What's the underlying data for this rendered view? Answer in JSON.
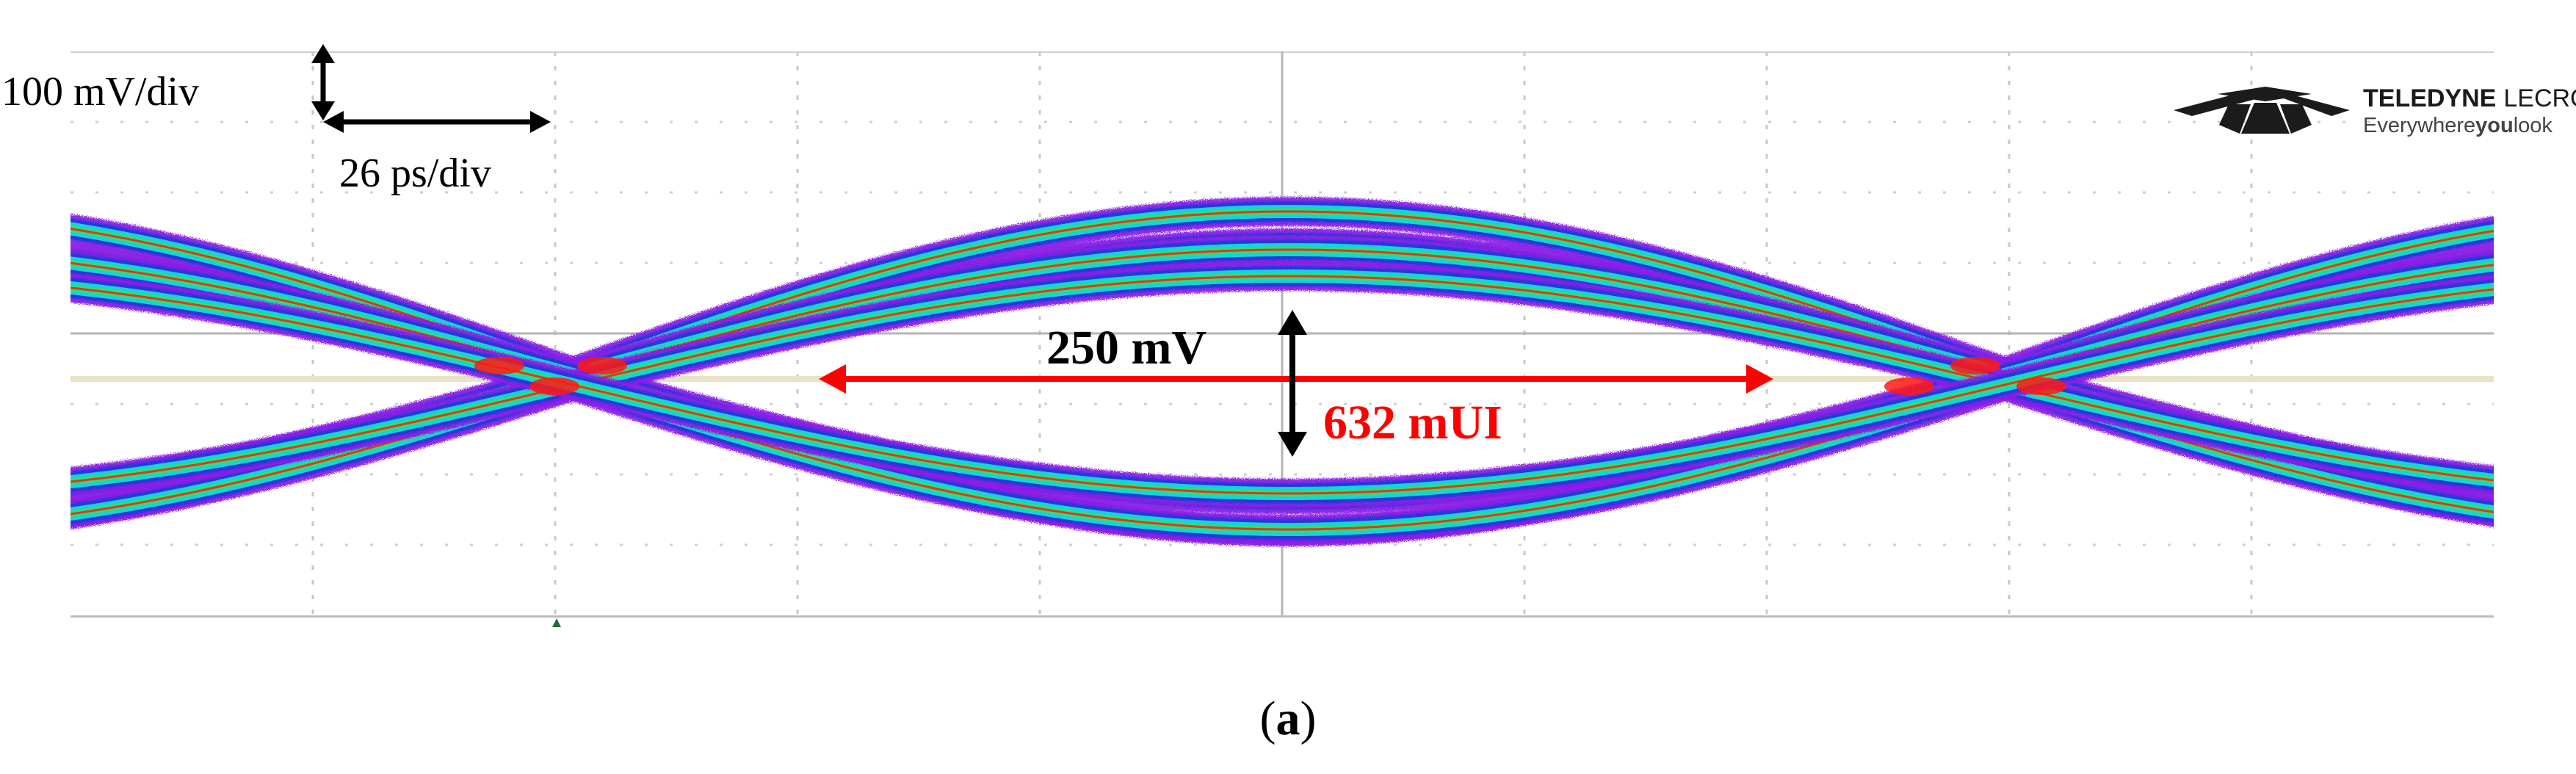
{
  "chart_data": {
    "type": "eye-diagram",
    "scale": {
      "vertical": "100 mV/div",
      "horizontal": "26 ps/div"
    },
    "annotations": {
      "eye_height": "250 mV",
      "eye_width": "632 mUI"
    },
    "brand": {
      "name_bold": "TELEDYNE",
      "name_light": "LECROY",
      "tagline_a": "Everywhere",
      "tagline_b": "you",
      "tagline_c": "look"
    },
    "caption": {
      "open": "(",
      "letter": "a",
      "close": ")"
    },
    "colors": {
      "outer": "#8a1ee6",
      "mid": "#2538d8",
      "teal": "#17d2dc",
      "green": "#2de070",
      "hot": "#ff1a12",
      "annotation_red": "#ff0000",
      "annotation_black": "#000000"
    },
    "traces": [
      {
        "name": "upper-outer",
        "shape": "arch"
      },
      {
        "name": "upper-inner",
        "shape": "arch"
      },
      {
        "name": "lower-inner",
        "shape": "trough"
      },
      {
        "name": "lower-outer",
        "shape": "trough"
      }
    ]
  }
}
